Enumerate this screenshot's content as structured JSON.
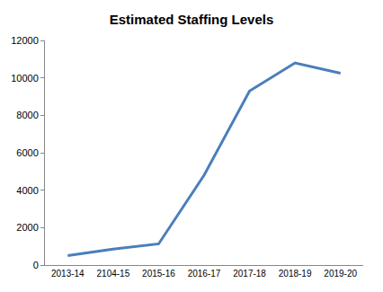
{
  "chart_data": {
    "type": "line",
    "title": "Estimated Staffing Levels",
    "categories": [
      "2013-14",
      "2104-15",
      "2015-16",
      "2016-17",
      "2017-18",
      "2018-19",
      "2019-20"
    ],
    "values": [
      500,
      850,
      1130,
      4800,
      9300,
      10800,
      10250
    ],
    "color": "#4a7ebb",
    "ylim": [
      0,
      12000
    ],
    "yticks": [
      0,
      2000,
      4000,
      6000,
      8000,
      10000,
      12000
    ],
    "grid": false
  }
}
